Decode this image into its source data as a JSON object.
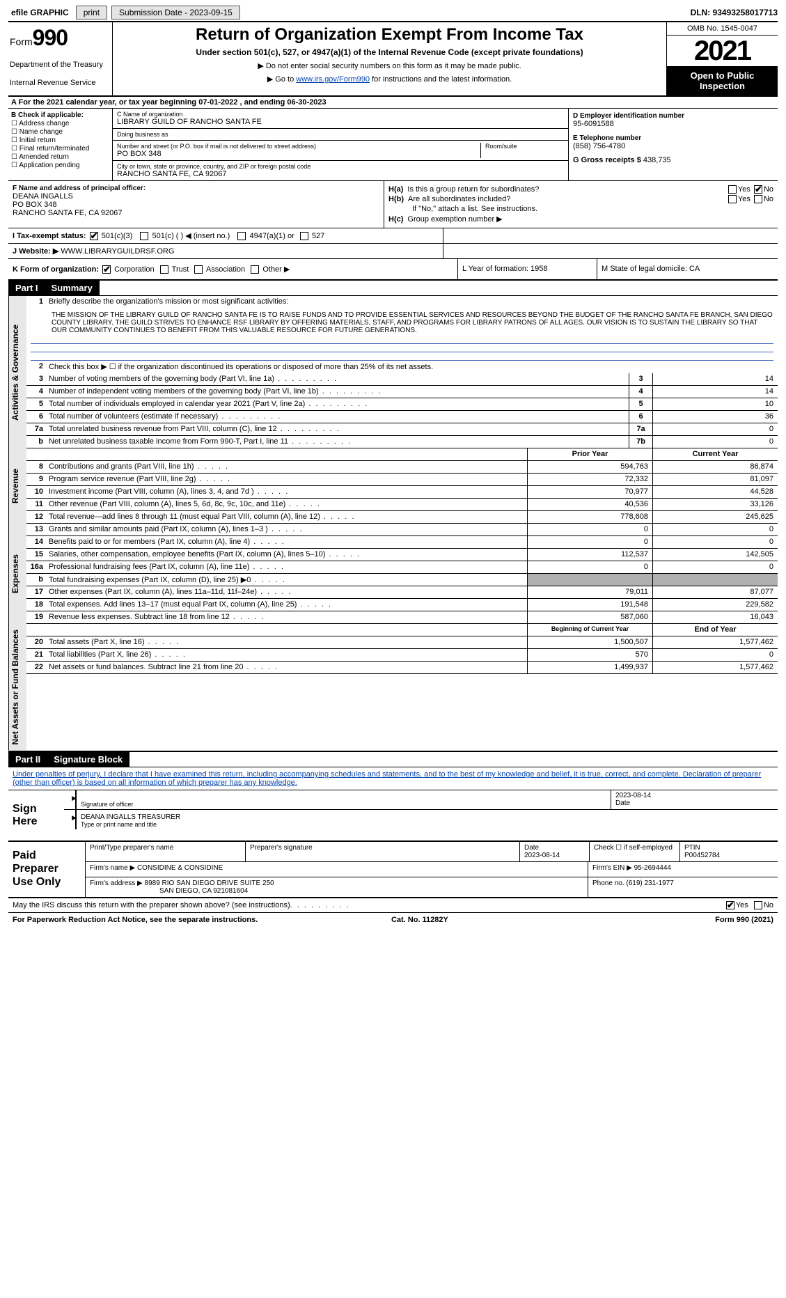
{
  "topbar": {
    "efile": "efile GRAPHIC",
    "print": "print",
    "submission": "Submission Date - 2023-09-15",
    "dln": "DLN: 93493258017713"
  },
  "header": {
    "form_word": "Form",
    "form_num": "990",
    "dept": "Department of the Treasury",
    "irs": "Internal Revenue Service",
    "title": "Return of Organization Exempt From Income Tax",
    "subtitle": "Under section 501(c), 527, or 4947(a)(1) of the Internal Revenue Code (except private foundations)",
    "note1": "▶ Do not enter social security numbers on this form as it may be made public.",
    "note2_pre": "▶ Go to ",
    "note2_link": "www.irs.gov/Form990",
    "note2_post": " for instructions and the latest information.",
    "omb": "OMB No. 1545-0047",
    "year": "2021",
    "open": "Open to Public Inspection"
  },
  "rowA": {
    "text_pre": "A For the 2021 calendar year, or tax year beginning ",
    "begin": "07-01-2022",
    "mid": " , and ending ",
    "end": "06-30-2023"
  },
  "boxB": {
    "label": "B Check if applicable:",
    "items": [
      "Address change",
      "Name change",
      "Initial return",
      "Final return/terminated",
      "Amended return",
      "Application pending"
    ]
  },
  "boxC": {
    "name_label": "C Name of organization",
    "name": "LIBRARY GUILD OF RANCHO SANTA FE",
    "dba_label": "Doing business as",
    "dba": "",
    "street_label": "Number and street (or P.O. box if mail is not delivered to street address)",
    "street": "PO BOX 348",
    "room_label": "Room/suite",
    "city_label": "City or town, state or province, country, and ZIP or foreign postal code",
    "city": "RANCHO SANTA FE, CA  92067"
  },
  "boxD": {
    "label": "D Employer identification number",
    "val": "95-6091588"
  },
  "boxE": {
    "label": "E Telephone number",
    "val": "(858) 756-4780"
  },
  "boxG": {
    "label": "G Gross receipts $",
    "val": "438,735"
  },
  "boxF": {
    "label": "F Name and address of principal officer:",
    "name": "DEANA INGALLS",
    "street": "PO BOX 348",
    "city": "RANCHO SANTA FE, CA  92067"
  },
  "boxH": {
    "a_label": "H(a)",
    "a_text": "Is this a group return for subordinates?",
    "b_label": "H(b)",
    "b_text": "Are all subordinates included?",
    "b_note": "If \"No,\" attach a list. See instructions.",
    "c_label": "H(c)",
    "c_text": "Group exemption number ▶"
  },
  "rowI": {
    "label": "I   Tax-exempt status:",
    "opts": [
      "501(c)(3)",
      "501(c) (  ) ◀ (insert no.)",
      "4947(a)(1) or",
      "527"
    ]
  },
  "rowJ": {
    "label": "J   Website: ▶",
    "val": "WWW.LIBRARYGUILDRSF.ORG"
  },
  "rowK": {
    "label": "K Form of organization:",
    "opts": [
      "Corporation",
      "Trust",
      "Association",
      "Other ▶"
    ],
    "L": "L Year of formation: 1958",
    "M": "M State of legal domicile: CA"
  },
  "parts": {
    "p1": "Part I",
    "p1t": "Summary",
    "p2": "Part II",
    "p2t": "Signature Block"
  },
  "summary": {
    "side_gov": "Activities & Governance",
    "side_rev": "Revenue",
    "side_exp": "Expenses",
    "side_net": "Net Assets or Fund Balances",
    "l1_label": "Briefly describe the organization's mission or most significant activities:",
    "l1_text": "THE MISSION OF THE LIBRARY GUILD OF RANCHO SANTA FE IS TO RAISE FUNDS AND TO PROVIDE ESSENTIAL SERVICES AND RESOURCES BEYOND THE BUDGET OF THE RANCHO SANTA FE BRANCH, SAN DIEGO COUNTY LIBRARY. THE GUILD STRIVES TO ENHANCE RSF LIBRARY BY OFFERING MATERIALS, STAFF, AND PROGRAMS FOR LIBRARY PATRONS OF ALL AGES. OUR VISION IS TO SUSTAIN THE LIBRARY SO THAT OUR COMMUNITY CONTINUES TO BENEFIT FROM THIS VALUABLE RESOURCE FOR FUTURE GENERATIONS.",
    "l2": "Check this box ▶ ☐  if the organization discontinued its operations or disposed of more than 25% of its net assets.",
    "lines_gov": [
      {
        "n": "3",
        "t": "Number of voting members of the governing body (Part VI, line 1a)",
        "box": "3",
        "v": "14"
      },
      {
        "n": "4",
        "t": "Number of independent voting members of the governing body (Part VI, line 1b)",
        "box": "4",
        "v": "14"
      },
      {
        "n": "5",
        "t": "Total number of individuals employed in calendar year 2021 (Part V, line 2a)",
        "box": "5",
        "v": "10"
      },
      {
        "n": "6",
        "t": "Total number of volunteers (estimate if necessary)",
        "box": "6",
        "v": "36"
      },
      {
        "n": "7a",
        "t": "Total unrelated business revenue from Part VIII, column (C), line 12",
        "box": "7a",
        "v": "0"
      },
      {
        "n": "b",
        "t": "Net unrelated business taxable income from Form 990-T, Part I, line 11",
        "box": "7b",
        "v": "0"
      }
    ],
    "col_prior": "Prior Year",
    "col_current": "Current Year",
    "lines_rev": [
      {
        "n": "8",
        "t": "Contributions and grants (Part VIII, line 1h)",
        "p": "594,763",
        "c": "86,874"
      },
      {
        "n": "9",
        "t": "Program service revenue (Part VIII, line 2g)",
        "p": "72,332",
        "c": "81,097"
      },
      {
        "n": "10",
        "t": "Investment income (Part VIII, column (A), lines 3, 4, and 7d )",
        "p": "70,977",
        "c": "44,528"
      },
      {
        "n": "11",
        "t": "Other revenue (Part VIII, column (A), lines 5, 6d, 8c, 9c, 10c, and 11e)",
        "p": "40,536",
        "c": "33,126"
      },
      {
        "n": "12",
        "t": "Total revenue—add lines 8 through 11 (must equal Part VIII, column (A), line 12)",
        "p": "778,608",
        "c": "245,625"
      }
    ],
    "lines_exp": [
      {
        "n": "13",
        "t": "Grants and similar amounts paid (Part IX, column (A), lines 1–3 )",
        "p": "0",
        "c": "0"
      },
      {
        "n": "14",
        "t": "Benefits paid to or for members (Part IX, column (A), line 4)",
        "p": "0",
        "c": "0"
      },
      {
        "n": "15",
        "t": "Salaries, other compensation, employee benefits (Part IX, column (A), lines 5–10)",
        "p": "112,537",
        "c": "142,505"
      },
      {
        "n": "16a",
        "t": "Professional fundraising fees (Part IX, column (A), line 11e)",
        "p": "0",
        "c": "0"
      },
      {
        "n": "b",
        "t": "Total fundraising expenses (Part IX, column (D), line 25) ▶0",
        "p": "",
        "c": "",
        "shaded": true
      },
      {
        "n": "17",
        "t": "Other expenses (Part IX, column (A), lines 11a–11d, 11f–24e)",
        "p": "79,011",
        "c": "87,077"
      },
      {
        "n": "18",
        "t": "Total expenses. Add lines 13–17 (must equal Part IX, column (A), line 25)",
        "p": "191,548",
        "c": "229,582"
      },
      {
        "n": "19",
        "t": "Revenue less expenses. Subtract line 18 from line 12",
        "p": "587,060",
        "c": "16,043"
      }
    ],
    "col_begin": "Beginning of Current Year",
    "col_end": "End of Year",
    "lines_net": [
      {
        "n": "20",
        "t": "Total assets (Part X, line 16)",
        "p": "1,500,507",
        "c": "1,577,462"
      },
      {
        "n": "21",
        "t": "Total liabilities (Part X, line 26)",
        "p": "570",
        "c": "0"
      },
      {
        "n": "22",
        "t": "Net assets or fund balances. Subtract line 21 from line 20",
        "p": "1,499,937",
        "c": "1,577,462"
      }
    ]
  },
  "sig": {
    "intro": "Under penalties of perjury, I declare that I have examined this return, including accompanying schedules and statements, and to the best of my knowledge and belief, it is true, correct, and complete. Declaration of preparer (other than officer) is based on all information of which preparer has any knowledge.",
    "sign_here": "Sign Here",
    "sig_label": "Signature of officer",
    "date_label": "Date",
    "date": "2023-08-14",
    "name": "DEANA INGALLS  TREASURER",
    "name_label": "Type or print name and title"
  },
  "prep": {
    "title": "Paid Preparer Use Only",
    "r1": {
      "c1": "Print/Type preparer's name",
      "c2": "Preparer's signature",
      "c3l": "Date",
      "c3": "2023-08-14",
      "c4": "Check ☐ if self-employed",
      "c5l": "PTIN",
      "c5": "P00452784"
    },
    "r2": {
      "l": "Firm's name   ▶",
      "v": "CONSIDINE & CONSIDINE",
      "r": "Firm's EIN ▶ 95-2694444"
    },
    "r3": {
      "l": "Firm's address ▶",
      "v1": "8989 RIO SAN DIEGO DRIVE SUITE 250",
      "v2": "SAN DIEGO, CA  921081604",
      "r": "Phone no. (619) 231-1977"
    }
  },
  "footer": {
    "q": "May the IRS discuss this return with the preparer shown above? (see instructions)",
    "pra": "For Paperwork Reduction Act Notice, see the separate instructions.",
    "cat": "Cat. No. 11282Y",
    "form": "Form 990 (2021)"
  },
  "yn": {
    "yes": "Yes",
    "no": "No"
  }
}
